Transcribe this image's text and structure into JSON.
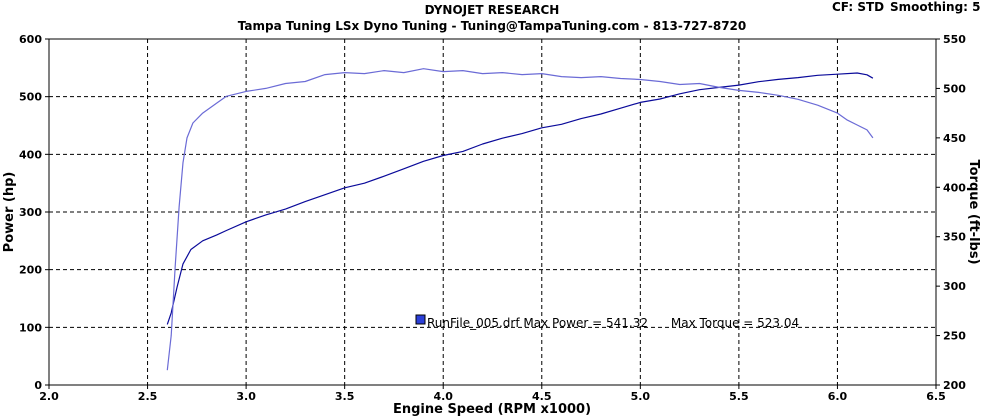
{
  "header": {
    "title": "DYNOJET RESEARCH",
    "subtitle": "Tampa Tuning LSx Dyno Tuning - Tuning@TampaTuning.com - 813-727-8720",
    "cf_label": "CF: STD",
    "smoothing_label": "Smoothing: 5"
  },
  "legend": {
    "text": "RunFile_005.drf Max Power = 541.32      Max Torque = 523.04",
    "swatch_color": "#2b3fd8"
  },
  "colors": {
    "power": "#0a0a9a",
    "torque": "#6b6bd6"
  },
  "chart_data": {
    "type": "line",
    "xlabel": "Engine Speed (RPM x1000)",
    "ylabel": "Power (hp)",
    "y2label": "Torque (ft-lbs)",
    "xlim": [
      2.0,
      6.5
    ],
    "ylim": [
      0,
      600
    ],
    "y2lim": [
      200,
      550
    ],
    "xticks": [
      "2.0",
      "2.5",
      "3.0",
      "3.5",
      "4.0",
      "4.5",
      "5.0",
      "5.5",
      "6.0",
      "6.5"
    ],
    "yticks": [
      "0",
      "100",
      "200",
      "300",
      "400",
      "500",
      "600"
    ],
    "y2ticks": [
      "200",
      "250",
      "300",
      "350",
      "400",
      "450",
      "500",
      "550"
    ],
    "grid": true,
    "series": [
      {
        "name": "Power",
        "axis": "left",
        "points": [
          [
            2.6,
            105
          ],
          [
            2.62,
            125
          ],
          [
            2.65,
            170
          ],
          [
            2.68,
            210
          ],
          [
            2.72,
            235
          ],
          [
            2.78,
            250
          ],
          [
            2.85,
            260
          ],
          [
            2.9,
            268
          ],
          [
            3.0,
            283
          ],
          [
            3.1,
            295
          ],
          [
            3.2,
            305
          ],
          [
            3.3,
            318
          ],
          [
            3.4,
            330
          ],
          [
            3.5,
            342
          ],
          [
            3.6,
            350
          ],
          [
            3.7,
            362
          ],
          [
            3.8,
            375
          ],
          [
            3.9,
            388
          ],
          [
            4.0,
            398
          ],
          [
            4.1,
            405
          ],
          [
            4.2,
            418
          ],
          [
            4.3,
            428
          ],
          [
            4.4,
            436
          ],
          [
            4.5,
            446
          ],
          [
            4.6,
            452
          ],
          [
            4.7,
            462
          ],
          [
            4.8,
            470
          ],
          [
            4.9,
            480
          ],
          [
            5.0,
            490
          ],
          [
            5.1,
            496
          ],
          [
            5.2,
            505
          ],
          [
            5.3,
            512
          ],
          [
            5.4,
            516
          ],
          [
            5.5,
            520
          ],
          [
            5.6,
            526
          ],
          [
            5.7,
            530
          ],
          [
            5.8,
            533
          ],
          [
            5.9,
            537
          ],
          [
            6.0,
            539
          ],
          [
            6.1,
            541
          ],
          [
            6.15,
            538
          ],
          [
            6.18,
            532
          ]
        ]
      },
      {
        "name": "Torque",
        "axis": "right",
        "points": [
          [
            2.6,
            215
          ],
          [
            2.62,
            250
          ],
          [
            2.64,
            320
          ],
          [
            2.66,
            380
          ],
          [
            2.68,
            425
          ],
          [
            2.7,
            450
          ],
          [
            2.73,
            465
          ],
          [
            2.78,
            475
          ],
          [
            2.85,
            485
          ],
          [
            2.9,
            492
          ],
          [
            3.0,
            497
          ],
          [
            3.1,
            500
          ],
          [
            3.2,
            505
          ],
          [
            3.3,
            507
          ],
          [
            3.4,
            514
          ],
          [
            3.5,
            516
          ],
          [
            3.6,
            515
          ],
          [
            3.7,
            518
          ],
          [
            3.8,
            516
          ],
          [
            3.9,
            520
          ],
          [
            4.0,
            517
          ],
          [
            4.1,
            518
          ],
          [
            4.2,
            515
          ],
          [
            4.3,
            516
          ],
          [
            4.4,
            514
          ],
          [
            4.5,
            515
          ],
          [
            4.6,
            512
          ],
          [
            4.7,
            511
          ],
          [
            4.8,
            512
          ],
          [
            4.9,
            510
          ],
          [
            5.0,
            509
          ],
          [
            5.1,
            507
          ],
          [
            5.2,
            504
          ],
          [
            5.3,
            505
          ],
          [
            5.4,
            501
          ],
          [
            5.5,
            498
          ],
          [
            5.6,
            496
          ],
          [
            5.7,
            493
          ],
          [
            5.8,
            489
          ],
          [
            5.9,
            483
          ],
          [
            6.0,
            475
          ],
          [
            6.05,
            468
          ],
          [
            6.1,
            463
          ],
          [
            6.15,
            458
          ],
          [
            6.18,
            450
          ]
        ]
      }
    ]
  }
}
